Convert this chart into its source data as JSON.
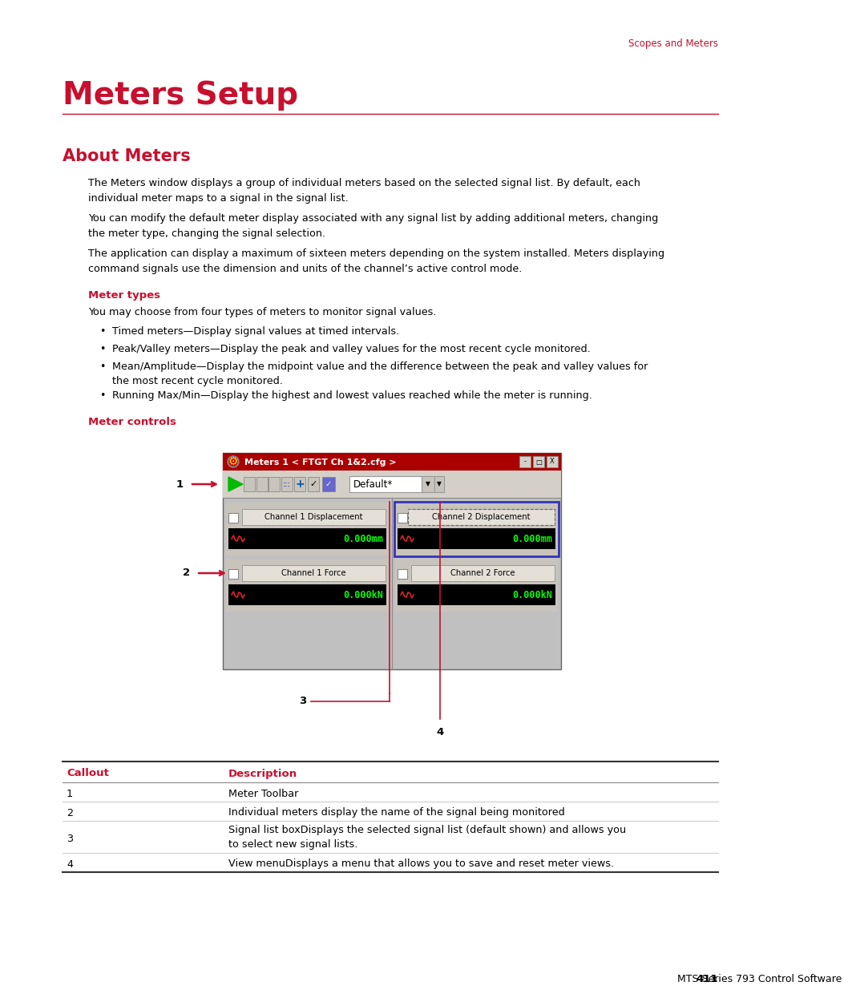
{
  "page_title": "Meters Setup",
  "header_text": "Scopes and Meters",
  "section_title": "About Meters",
  "body_color": "#000000",
  "red_color": "#C8102E",
  "bg_color": "#FFFFFF",
  "footer_text": "MTS Series 793 Control Software",
  "footer_page": "411",
  "para1": "The Meters window displays a group of individual meters based on the selected signal list. By default, each\nindividual meter maps to a signal in the signal list.",
  "para2": "You can modify the default meter display associated with any signal list by adding additional meters, changing\nthe meter type, changing the signal selection.",
  "para3": "The application can display a maximum of sixteen meters depending on the system installed. Meters displaying\ncommand signals use the dimension and units of the channel’s active control mode.",
  "meter_types_title": "Meter types",
  "meter_types_intro": "You may choose from four types of meters to monitor signal values.",
  "bullet1": "Timed meters—Display signal values at timed intervals.",
  "bullet2": "Peak/Valley meters—Display the peak and valley values for the most recent cycle monitored.",
  "bullet3": "Mean/Amplitude—Display the midpoint value and the difference between the peak and valley values for\nthe most recent cycle monitored.",
  "bullet4": "Running Max/Min—Display the highest and lowest values reached while the meter is running.",
  "meter_controls_title": "Meter controls",
  "callout_header1": "Callout",
  "callout_header2": "Description",
  "callout1": "1",
  "desc1": "Meter Toolbar",
  "callout2": "2",
  "desc2": "Individual meters display the name of the signal being monitored",
  "callout3": "3",
  "desc3": "Signal list boxDisplays the selected signal list (default shown) and allows you\nto select new signal lists.",
  "callout4": "4",
  "desc4": "View menuDisplays a menu that allows you to save and reset meter views.",
  "win_title": "Meters 1 < FTGT Ch 1&amp;2.cfg >"
}
